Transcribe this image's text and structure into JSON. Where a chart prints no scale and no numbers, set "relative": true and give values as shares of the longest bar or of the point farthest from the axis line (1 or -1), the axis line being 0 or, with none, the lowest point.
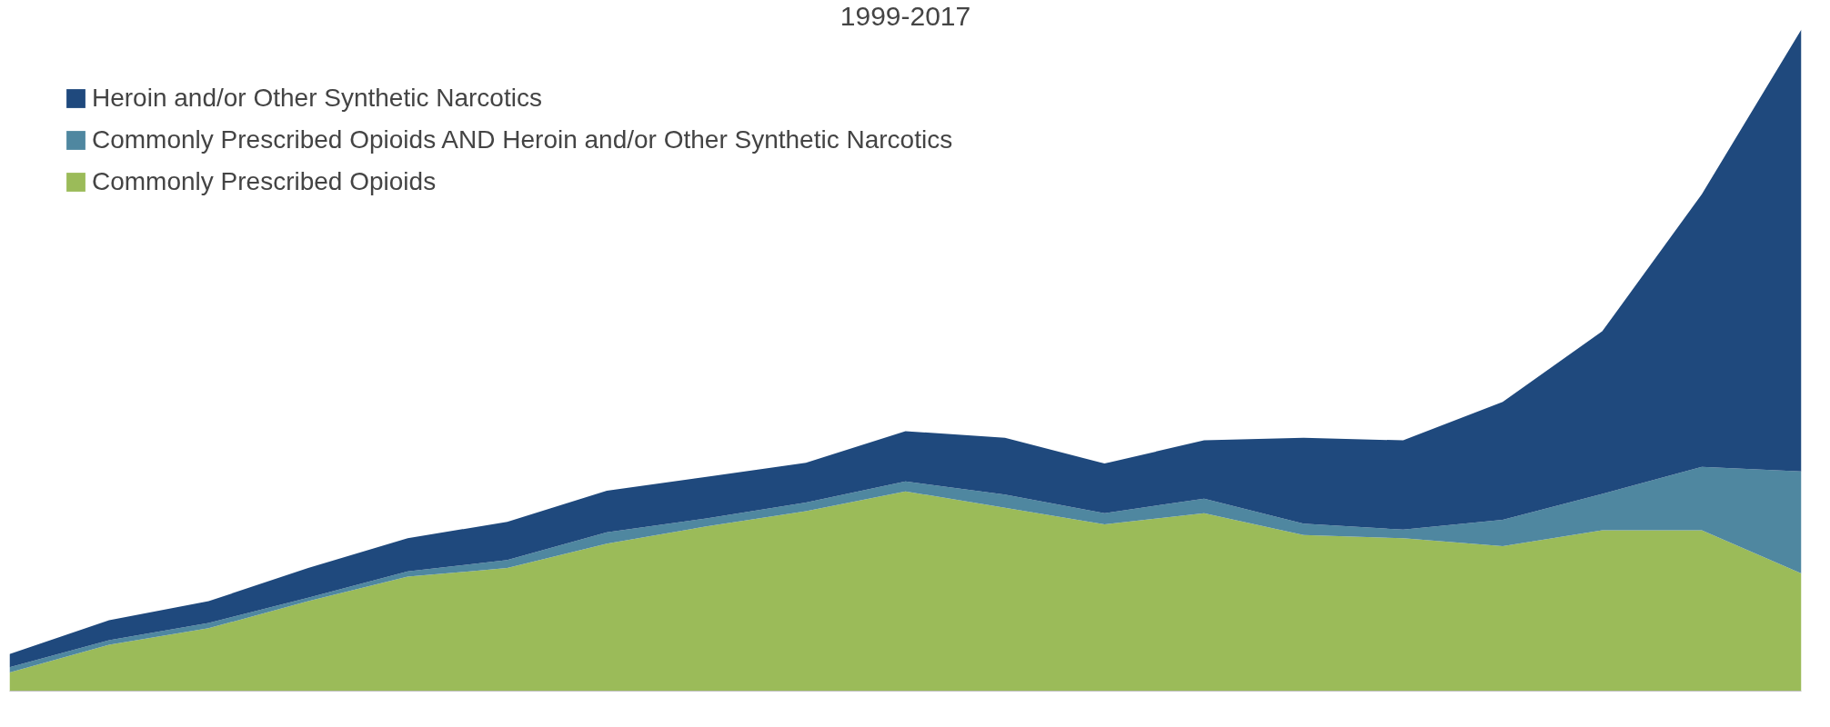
{
  "chart_data": {
    "type": "area",
    "title": "1999-2017",
    "relative": true,
    "stacked": true,
    "legend": "top left",
    "grid": false,
    "categories": [
      null,
      null,
      null,
      null,
      null,
      null,
      null,
      null,
      null,
      null,
      null,
      null,
      null,
      null,
      null,
      null,
      null,
      null,
      null
    ],
    "series": [
      {
        "name": "Commonly Prescribed Opioids",
        "color": "#9bbb59",
        "values": [
          0.028,
          0.07,
          0.095,
          0.136,
          0.173,
          0.186,
          0.223,
          0.249,
          0.272,
          0.302,
          0.277,
          0.252,
          0.269,
          0.236,
          0.231,
          0.219,
          0.243,
          0.243,
          0.178
        ]
      },
      {
        "name": "Commonly Prescribed Opioids AND Heroin and/or Other Synthetic Narcotics",
        "color": "#4f87a0",
        "values": [
          0.008,
          0.007,
          0.008,
          0.005,
          0.008,
          0.012,
          0.017,
          0.012,
          0.013,
          0.015,
          0.02,
          0.017,
          0.022,
          0.017,
          0.013,
          0.04,
          0.055,
          0.096,
          0.154
        ]
      },
      {
        "name": "Heroin and/or Other Synthetic Narcotics",
        "color": "#1f497d",
        "values": [
          0.02,
          0.03,
          0.033,
          0.045,
          0.05,
          0.058,
          0.063,
          0.063,
          0.06,
          0.076,
          0.086,
          0.075,
          0.088,
          0.13,
          0.135,
          0.178,
          0.246,
          0.412,
          0.668
        ]
      }
    ]
  }
}
